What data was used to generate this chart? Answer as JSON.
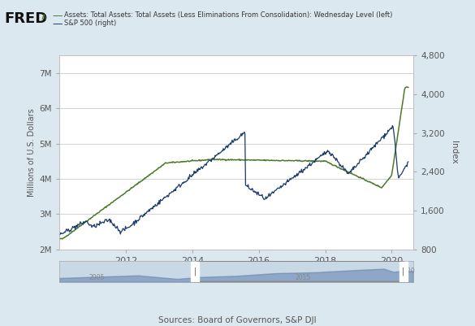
{
  "title_left": "Assets: Total Assets: Total Assets (Less Eliminations From Consolidation): Wednesday Level (left)",
  "title_right": "S&P 500 (right)",
  "ylabel_left": "Millions of U.S. Dollars",
  "ylabel_right": "Index",
  "xlabel_bottom": "Sources: Board of Governors, S&P DJI",
  "fred_logo": "FRED",
  "bg_color": "#dce8f0",
  "plot_bg_color": "#ffffff",
  "line1_color": "#4a7a2a",
  "line2_color": "#1a3a6a",
  "ylim_left": [
    2000000,
    7500000
  ],
  "ylim_right": [
    800,
    4800
  ],
  "yticks_left": [
    2000000,
    3000000,
    4000000,
    5000000,
    6000000,
    7000000
  ],
  "ytick_labels_left": [
    "2M",
    "3M",
    "4M",
    "5M",
    "6M",
    "7M"
  ],
  "yticks_right": [
    800,
    1600,
    2400,
    3200,
    4000,
    4800
  ],
  "ytick_labels_right": [
    "800",
    "1,600",
    "2,400",
    "3,200",
    "4,000",
    "4,800"
  ],
  "xtick_years": [
    "2012",
    "2014",
    "2016",
    "2018",
    "2020"
  ]
}
